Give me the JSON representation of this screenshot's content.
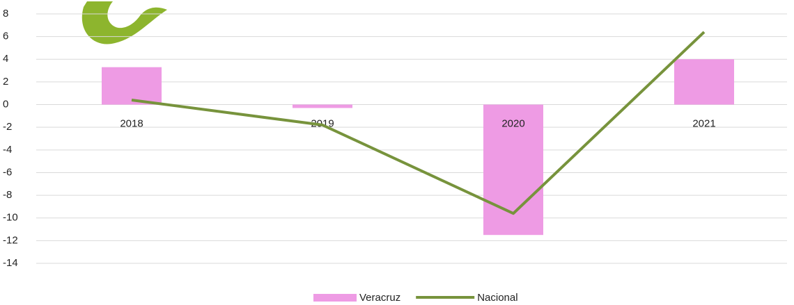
{
  "chart_data": {
    "type": "bar",
    "categories": [
      "2018",
      "2019",
      "2020",
      "2021"
    ],
    "series": [
      {
        "name": "Veracruz",
        "type": "bar",
        "color": "#ee9be4",
        "values": [
          3.3,
          -0.3,
          -11.5,
          4.0
        ]
      },
      {
        "name": "Nacional",
        "type": "line",
        "color": "#77933c",
        "values": [
          0.4,
          -1.8,
          -9.6,
          6.4
        ]
      }
    ],
    "ylim": [
      -14,
      8
    ],
    "yticks": [
      -14,
      -12,
      -10,
      -8,
      -6,
      -4,
      -2,
      0,
      2,
      4,
      6,
      8
    ],
    "grid": true,
    "legend": "bottom"
  }
}
